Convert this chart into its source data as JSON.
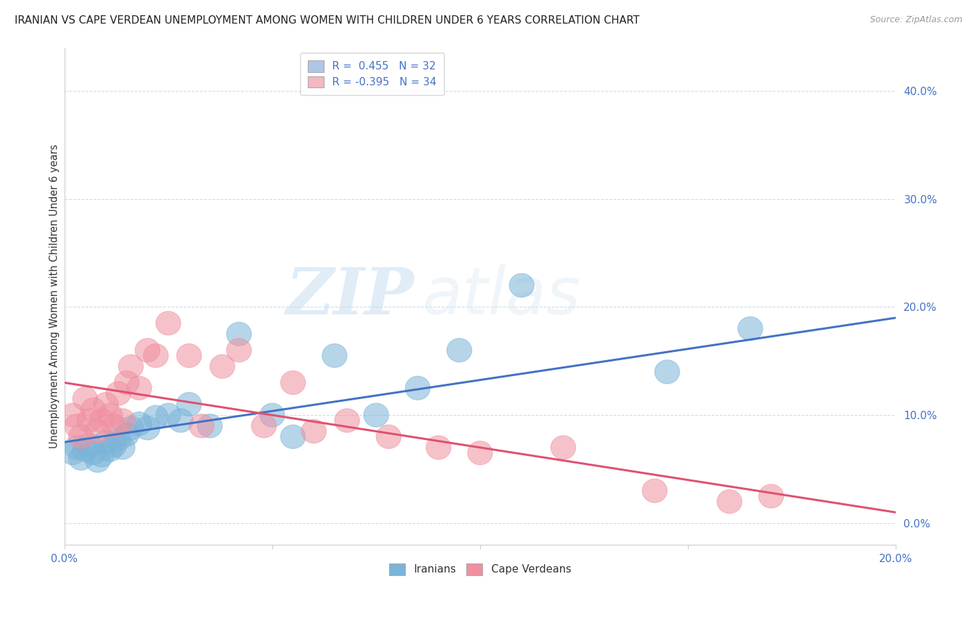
{
  "title": "IRANIAN VS CAPE VERDEAN UNEMPLOYMENT AMONG WOMEN WITH CHILDREN UNDER 6 YEARS CORRELATION CHART",
  "source": "Source: ZipAtlas.com",
  "ylabel": "Unemployment Among Women with Children Under 6 years",
  "xlim": [
    0.0,
    0.2
  ],
  "ylim": [
    -0.02,
    0.44
  ],
  "xticks": [
    0.0,
    0.2
  ],
  "yticks": [
    0.0,
    0.1,
    0.2,
    0.3,
    0.4
  ],
  "xtick_labels": [
    "0.0%",
    "20.0%"
  ],
  "ytick_labels": [
    "0.0%",
    "10.0%",
    "20.0%",
    "30.0%",
    "40.0%"
  ],
  "legend_entries": [
    {
      "label": "R =  0.455   N = 32",
      "color": "#aec6e8"
    },
    {
      "label": "R = -0.395   N = 34",
      "color": "#f4b8c1"
    }
  ],
  "iranians_color": "#7ab4d8",
  "cape_verdeans_color": "#f090a0",
  "trend_iranian_color": "#4472c4",
  "trend_cape_color": "#e05070",
  "watermark_zip": "ZIP",
  "watermark_atlas": "atlas",
  "iranians_x": [
    0.002,
    0.003,
    0.004,
    0.005,
    0.006,
    0.007,
    0.008,
    0.009,
    0.01,
    0.011,
    0.012,
    0.013,
    0.014,
    0.015,
    0.016,
    0.018,
    0.02,
    0.022,
    0.025,
    0.028,
    0.03,
    0.035,
    0.042,
    0.05,
    0.055,
    0.065,
    0.075,
    0.085,
    0.095,
    0.11,
    0.145,
    0.165
  ],
  "iranians_y": [
    0.065,
    0.07,
    0.06,
    0.068,
    0.072,
    0.065,
    0.058,
    0.063,
    0.075,
    0.068,
    0.072,
    0.078,
    0.07,
    0.082,
    0.088,
    0.092,
    0.088,
    0.098,
    0.1,
    0.095,
    0.11,
    0.09,
    0.175,
    0.1,
    0.08,
    0.155,
    0.1,
    0.125,
    0.16,
    0.22,
    0.14,
    0.18
  ],
  "cape_verdeans_x": [
    0.002,
    0.003,
    0.004,
    0.005,
    0.006,
    0.007,
    0.008,
    0.009,
    0.01,
    0.011,
    0.012,
    0.013,
    0.014,
    0.015,
    0.016,
    0.018,
    0.02,
    0.022,
    0.025,
    0.03,
    0.033,
    0.038,
    0.042,
    0.048,
    0.055,
    0.06,
    0.068,
    0.078,
    0.09,
    0.1,
    0.12,
    0.142,
    0.16,
    0.17
  ],
  "cape_verdeans_y": [
    0.1,
    0.09,
    0.08,
    0.115,
    0.095,
    0.105,
    0.085,
    0.095,
    0.11,
    0.1,
    0.09,
    0.12,
    0.095,
    0.13,
    0.145,
    0.125,
    0.16,
    0.155,
    0.185,
    0.155,
    0.09,
    0.145,
    0.16,
    0.09,
    0.13,
    0.085,
    0.095,
    0.08,
    0.07,
    0.065,
    0.07,
    0.03,
    0.02,
    0.025
  ],
  "trend_iran_x0": 0.0,
  "trend_iran_y0": 0.075,
  "trend_iran_x1": 0.2,
  "trend_iran_y1": 0.19,
  "trend_cape_x0": 0.0,
  "trend_cape_y0": 0.13,
  "trend_cape_x1": 0.2,
  "trend_cape_y1": 0.01
}
